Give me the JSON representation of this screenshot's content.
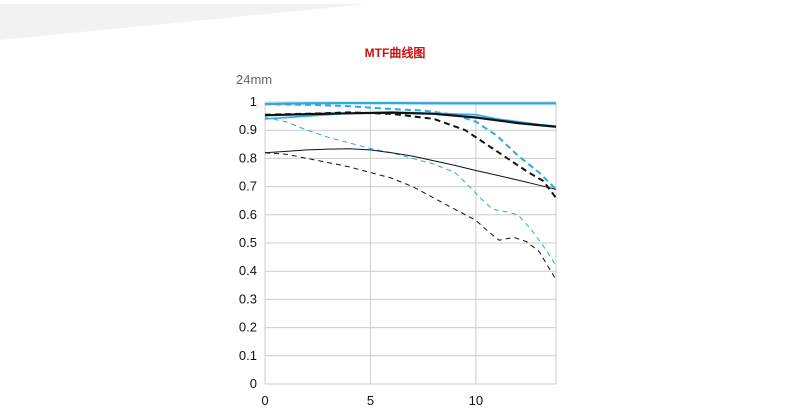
{
  "page": {
    "title": "MTF曲线图",
    "subtitle": "24mm"
  },
  "chart_data": {
    "type": "line",
    "title": "MTF曲线图",
    "subtitle": "24mm",
    "xlabel": "",
    "ylabel": "",
    "xlim": [
      0,
      13.8
    ],
    "ylim": [
      0,
      1
    ],
    "x_ticks": [
      0,
      5,
      10
    ],
    "y_ticks": [
      0,
      0.1,
      0.2,
      0.3,
      0.4,
      0.5,
      0.6,
      0.7,
      0.8,
      0.9,
      1
    ],
    "y_tick_labels": [
      "0",
      "0.1",
      "0.2",
      "0.3",
      "0.4",
      "0.5",
      "0.6",
      "0.7",
      "0.8",
      "0.9",
      "1"
    ],
    "grid": true,
    "legend": "none",
    "colors": {
      "blue": "#29abe2",
      "black": "#111111",
      "grid": "#cccccc"
    },
    "series": [
      {
        "color": "#29abe2",
        "width": 2.2,
        "dash": "solid",
        "points": [
          [
            0,
            0.993
          ],
          [
            2,
            0.995
          ],
          [
            4,
            0.996
          ],
          [
            6,
            0.996
          ],
          [
            8,
            0.995
          ],
          [
            10,
            0.995
          ],
          [
            12,
            0.995
          ],
          [
            13.8,
            0.995
          ]
        ]
      },
      {
        "color": "#29abe2",
        "width": 2.0,
        "dash": "dashed",
        "points": [
          [
            0,
            0.992
          ],
          [
            2,
            0.99
          ],
          [
            4,
            0.985
          ],
          [
            6,
            0.975
          ],
          [
            7.5,
            0.97
          ],
          [
            9,
            0.955
          ],
          [
            10,
            0.93
          ],
          [
            11,
            0.88
          ],
          [
            12,
            0.81
          ],
          [
            13,
            0.75
          ],
          [
            13.8,
            0.69
          ]
        ]
      },
      {
        "color": "#29abe2",
        "width": 1.6,
        "dash": "solid",
        "points": [
          [
            0,
            0.94
          ],
          [
            2,
            0.95
          ],
          [
            4,
            0.96
          ],
          [
            6,
            0.965
          ],
          [
            8,
            0.96
          ],
          [
            10,
            0.955
          ],
          [
            11,
            0.94
          ],
          [
            12,
            0.93
          ],
          [
            13,
            0.92
          ],
          [
            13.8,
            0.915
          ]
        ]
      },
      {
        "color": "#29abe2",
        "width": 1.0,
        "dash": "dashed",
        "points": [
          [
            0,
            0.945
          ],
          [
            1,
            0.93
          ],
          [
            2,
            0.9
          ],
          [
            3,
            0.875
          ],
          [
            4,
            0.855
          ],
          [
            5,
            0.835
          ],
          [
            6,
            0.82
          ],
          [
            7,
            0.8
          ],
          [
            8,
            0.78
          ],
          [
            9,
            0.75
          ],
          [
            9.7,
            0.7
          ],
          [
            10.2,
            0.66
          ],
          [
            10.8,
            0.62
          ],
          [
            11.5,
            0.61
          ],
          [
            12,
            0.6
          ],
          [
            12.6,
            0.55
          ],
          [
            13.2,
            0.49
          ],
          [
            13.8,
            0.42
          ]
        ]
      },
      {
        "color": "#111111",
        "width": 2.2,
        "dash": "solid",
        "points": [
          [
            0,
            0.953
          ],
          [
            2,
            0.957
          ],
          [
            4,
            0.96
          ],
          [
            6,
            0.962
          ],
          [
            8,
            0.958
          ],
          [
            10,
            0.945
          ],
          [
            11,
            0.935
          ],
          [
            12,
            0.925
          ],
          [
            13,
            0.918
          ],
          [
            13.8,
            0.912
          ]
        ]
      },
      {
        "color": "#111111",
        "width": 2.0,
        "dash": "dashed",
        "points": [
          [
            0,
            0.955
          ],
          [
            2,
            0.958
          ],
          [
            4,
            0.963
          ],
          [
            6,
            0.958
          ],
          [
            8,
            0.94
          ],
          [
            9.5,
            0.9
          ],
          [
            10.5,
            0.85
          ],
          [
            11.5,
            0.8
          ],
          [
            12.5,
            0.75
          ],
          [
            13.2,
            0.72
          ],
          [
            13.8,
            0.66
          ]
        ]
      },
      {
        "color": "#111111",
        "width": 1.0,
        "dash": "solid",
        "points": [
          [
            0,
            0.82
          ],
          [
            1,
            0.825
          ],
          [
            2,
            0.83
          ],
          [
            3,
            0.833
          ],
          [
            4,
            0.834
          ],
          [
            5,
            0.83
          ],
          [
            6,
            0.82
          ],
          [
            7,
            0.808
          ],
          [
            8,
            0.792
          ],
          [
            9,
            0.775
          ],
          [
            10,
            0.757
          ],
          [
            11,
            0.74
          ],
          [
            12,
            0.723
          ],
          [
            13,
            0.705
          ],
          [
            13.8,
            0.69
          ]
        ]
      },
      {
        "color": "#111111",
        "width": 1.0,
        "dash": "dashed",
        "points": [
          [
            0,
            0.82
          ],
          [
            1,
            0.815
          ],
          [
            2,
            0.8
          ],
          [
            3,
            0.785
          ],
          [
            4,
            0.77
          ],
          [
            5,
            0.75
          ],
          [
            6,
            0.73
          ],
          [
            7,
            0.7
          ],
          [
            8,
            0.66
          ],
          [
            9,
            0.62
          ],
          [
            10,
            0.58
          ],
          [
            10.6,
            0.54
          ],
          [
            11.1,
            0.51
          ],
          [
            11.8,
            0.52
          ],
          [
            12.4,
            0.505
          ],
          [
            13,
            0.47
          ],
          [
            13.8,
            0.37
          ]
        ]
      }
    ]
  }
}
